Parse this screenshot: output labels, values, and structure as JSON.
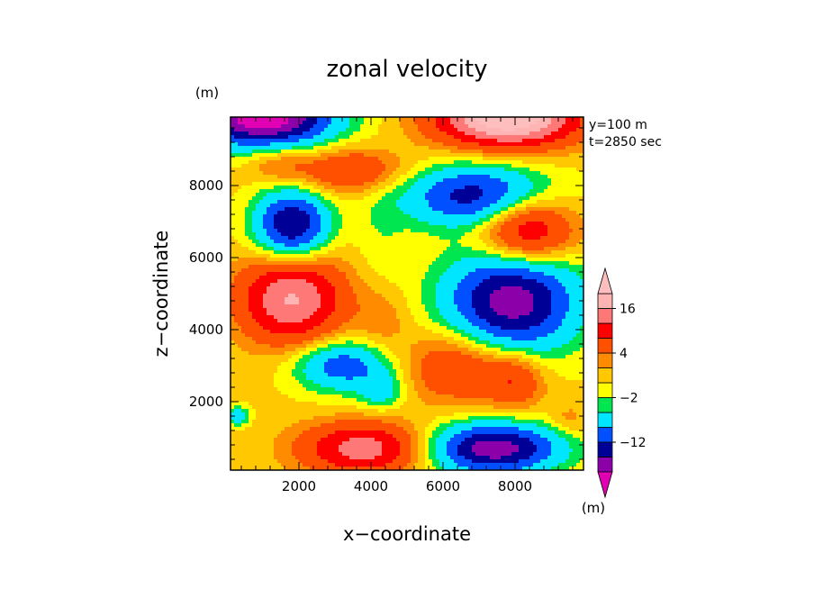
{
  "chart_data": {
    "type": "heatmap",
    "title": "zonal velocity",
    "xlabel": "x−coordinate",
    "ylabel": "z−coordinate",
    "x_unit": "(m)",
    "y_unit": "(m)",
    "info": [
      "y=100 m",
      "t=2850 sec"
    ],
    "xlim": [
      100,
      9900
    ],
    "ylim": [
      100,
      9900
    ],
    "x_ticks": [
      2000,
      4000,
      6000,
      8000
    ],
    "y_ticks": [
      2000,
      4000,
      6000,
      8000
    ],
    "grid": false,
    "colorbar": {
      "placement": "right",
      "unit": "(m)",
      "level_bounds": [
        -20,
        -16,
        -12,
        -8,
        -4,
        -2,
        0,
        2,
        4,
        8,
        12,
        16,
        20
      ],
      "colors": [
        "#e100b4",
        "#8c00aa",
        "#000096",
        "#0050ff",
        "#00e6ff",
        "#00e650",
        "#ffff00",
        "#ffc800",
        "#ff8c00",
        "#ff5000",
        "#ff0000",
        "#ff7878",
        "#ffb4b4",
        "#ffbebe"
      ],
      "labels": [
        {
          "value": -12,
          "text": "−12"
        },
        {
          "value": -2,
          "text": "−2"
        },
        {
          "value": 4,
          "text": "4"
        },
        {
          "value": 16,
          "text": "16"
        }
      ]
    },
    "field": {
      "base": 0.5,
      "components": [
        {
          "x": 1000,
          "z": 9900,
          "amp": -24,
          "sx": 1900,
          "sz": 800
        },
        {
          "x": 7800,
          "z": 9900,
          "amp": 24,
          "sx": 1900,
          "sz": 800
        },
        {
          "x": 3400,
          "z": 8400,
          "amp": 8,
          "sx": 1500,
          "sz": 600
        },
        {
          "x": 1400,
          "z": 8600,
          "amp": 4,
          "sx": 800,
          "sz": 500
        },
        {
          "x": 7000,
          "z": 7700,
          "amp": -15,
          "sx": 2000,
          "sz": 850
        },
        {
          "x": 1800,
          "z": 6900,
          "amp": -17,
          "sx": 1000,
          "sz": 950
        },
        {
          "x": 8300,
          "z": 6800,
          "amp": 14,
          "sx": 1300,
          "sz": 1000
        },
        {
          "x": 4300,
          "z": 6600,
          "amp": -2,
          "sx": 700,
          "sz": 1600
        },
        {
          "x": 1800,
          "z": 4850,
          "amp": 16,
          "sx": 1400,
          "sz": 1200
        },
        {
          "x": 7900,
          "z": 4800,
          "amp": -19,
          "sx": 1800,
          "sz": 1400
        },
        {
          "x": 4300,
          "z": 4300,
          "amp": 3,
          "sx": 700,
          "sz": 900
        },
        {
          "x": 3200,
          "z": 3000,
          "amp": -11,
          "sx": 1300,
          "sz": 700
        },
        {
          "x": 4300,
          "z": 2300,
          "amp": -6,
          "sx": 600,
          "sz": 500
        },
        {
          "x": 6400,
          "z": 3000,
          "amp": 8,
          "sx": 1400,
          "sz": 1000
        },
        {
          "x": 8000,
          "z": 2600,
          "amp": 7,
          "sx": 800,
          "sz": 800
        },
        {
          "x": 3800,
          "z": 700,
          "amp": 14,
          "sx": 1700,
          "sz": 700
        },
        {
          "x": 7400,
          "z": 700,
          "amp": -19,
          "sx": 1800,
          "sz": 700
        },
        {
          "x": 300,
          "z": 1600,
          "amp": -8,
          "sx": 300,
          "sz": 250
        },
        {
          "x": 9500,
          "z": 1500,
          "amp": 3,
          "sx": 500,
          "sz": 400
        }
      ]
    }
  }
}
